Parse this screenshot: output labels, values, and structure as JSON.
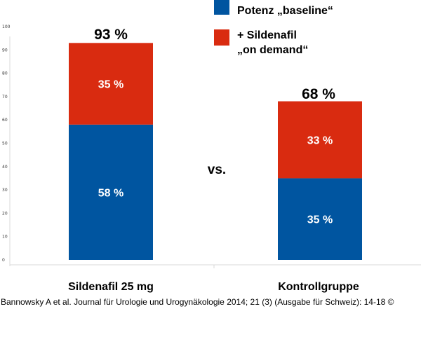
{
  "chart_data": {
    "type": "bar",
    "stacked": true,
    "categories": [
      "Sildenafil 25 mg",
      "Kontrollgruppe"
    ],
    "series": [
      {
        "name": "Potenz „baseline“",
        "color": "#0055a0",
        "values": [
          58,
          35
        ],
        "labels": [
          "58 %",
          "35 %"
        ]
      },
      {
        "name_lines": [
          "+ Sildenafil",
          "„on demand“"
        ],
        "color": "#d92b10",
        "values": [
          35,
          33
        ],
        "labels": [
          "35 %",
          "33 %"
        ]
      }
    ],
    "totals": [
      "93 %",
      "68 %"
    ],
    "ylim": [
      0,
      100
    ],
    "yticks": [
      0,
      10,
      20,
      30,
      40,
      50,
      60,
      70,
      80,
      90,
      100
    ],
    "annotation": "vs.",
    "legend_position": "top-right",
    "grid": false
  },
  "source": "Bannowsky A et al. Journal für Urologie und Urogynäkologie 2014; 21 (3) (Ausgabe für Schweiz): 14-18 ©"
}
